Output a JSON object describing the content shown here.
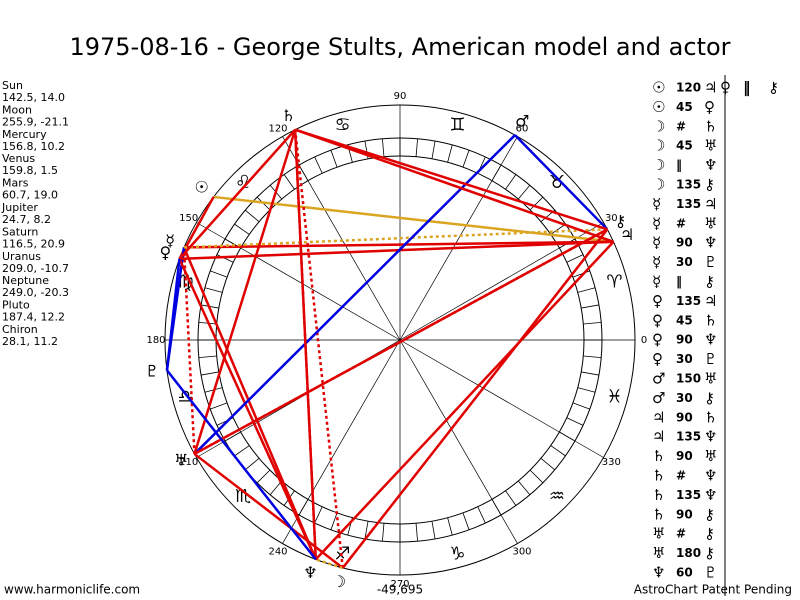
{
  "title": "1975-08-16 - George Stults, American model and actor",
  "planets": [
    {
      "name": "Sun",
      "glyph": "☉",
      "coords": "142.5, 14.0"
    },
    {
      "name": "Moon",
      "glyph": "☽",
      "coords": "255.9, -21.1"
    },
    {
      "name": "Mercury",
      "glyph": "☿",
      "coords": "156.8, 10.2"
    },
    {
      "name": "Venus",
      "glyph": "♀",
      "coords": "159.8, 1.5"
    },
    {
      "name": "Mars",
      "glyph": "♂",
      "coords": "60.7, 19.0"
    },
    {
      "name": "Jupiter",
      "glyph": "♃",
      "coords": "24.7, 8.2"
    },
    {
      "name": "Saturn",
      "glyph": "♄",
      "coords": "116.5, 20.9"
    },
    {
      "name": "Uranus",
      "glyph": "♅",
      "coords": "209.0, -10.7"
    },
    {
      "name": "Neptune",
      "glyph": "♆",
      "coords": "249.0, -20.3"
    },
    {
      "name": "Pluto",
      "glyph": "♇",
      "coords": "187.4, 12.2"
    },
    {
      "name": "Chiron",
      "glyph": "⚷",
      "coords": "28.1, 11.2"
    }
  ],
  "signs": [
    "♈",
    "♉",
    "♊",
    "♋",
    "♌",
    "♍",
    "♎",
    "♏",
    "♐",
    "♑",
    "♒",
    "♓"
  ],
  "degree_labels": [
    0,
    30,
    60,
    90,
    120,
    150,
    180,
    210,
    240,
    270,
    300,
    330
  ],
  "aspects": [
    {
      "p1": "☉",
      "aspect": "120",
      "p2": "♃",
      "color": "#daa520",
      "style": "solid"
    },
    {
      "p1": "☉",
      "aspect": "45",
      "p2": "♀",
      "color": "#e00000",
      "style": "solid"
    },
    {
      "p1": "☽",
      "aspect": "#",
      "p2": "♄",
      "color": "#e00000",
      "style": "dotted"
    },
    {
      "p1": "☽",
      "aspect": "45",
      "p2": "♅",
      "color": "#e00000",
      "style": "solid"
    },
    {
      "p1": "☽",
      "aspect": "‖",
      "p2": "♆",
      "color": "#daa520",
      "style": "dotted"
    },
    {
      "p1": "☽",
      "aspect": "135",
      "p2": "⚷",
      "color": "#e00000",
      "style": "solid"
    },
    {
      "p1": "☿",
      "aspect": "135",
      "p2": "♃",
      "color": "#e00000",
      "style": "solid"
    },
    {
      "p1": "☿",
      "aspect": "#",
      "p2": "♅",
      "color": "#e00000",
      "style": "dotted"
    },
    {
      "p1": "☿",
      "aspect": "90",
      "p2": "♆",
      "color": "#e00000",
      "style": "solid"
    },
    {
      "p1": "☿",
      "aspect": "30",
      "p2": "♇",
      "color": "#0000e0",
      "style": "solid"
    },
    {
      "p1": "☿",
      "aspect": "‖",
      "p2": "⚷",
      "color": "#daa520",
      "style": "dotted"
    },
    {
      "p1": "♀",
      "aspect": "135",
      "p2": "♃",
      "color": "#e00000",
      "style": "solid"
    },
    {
      "p1": "♀",
      "aspect": "45",
      "p2": "♄",
      "color": "#e00000",
      "style": "solid"
    },
    {
      "p1": "♀",
      "aspect": "90",
      "p2": "♆",
      "color": "#e00000",
      "style": "solid"
    },
    {
      "p1": "♀",
      "aspect": "30",
      "p2": "♇",
      "color": "#0000e0",
      "style": "solid"
    },
    {
      "p1": "♂",
      "aspect": "150",
      "p2": "♅",
      "color": "#0000e0",
      "style": "solid"
    },
    {
      "p1": "♂",
      "aspect": "30",
      "p2": "⚷",
      "color": "#0000e0",
      "style": "solid"
    },
    {
      "p1": "♃",
      "aspect": "90",
      "p2": "♄",
      "color": "#e00000",
      "style": "solid"
    },
    {
      "p1": "♃",
      "aspect": "135",
      "p2": "♆",
      "color": "#e00000",
      "style": "solid"
    },
    {
      "p1": "♄",
      "aspect": "90",
      "p2": "♅",
      "color": "#e00000",
      "style": "solid"
    },
    {
      "p1": "♄",
      "aspect": "#",
      "p2": "♆",
      "color": "#e00000",
      "style": "dotted"
    },
    {
      "p1": "♄",
      "aspect": "135",
      "p2": "♆",
      "color": "#e00000",
      "style": "solid"
    },
    {
      "p1": "♄",
      "aspect": "90",
      "p2": "⚷",
      "color": "#e00000",
      "style": "solid"
    },
    {
      "p1": "♅",
      "aspect": "#",
      "p2": "⚷",
      "color": "#e00000",
      "style": "dotted"
    },
    {
      "p1": "♅",
      "aspect": "180",
      "p2": "⚷",
      "color": "#e00000",
      "style": "solid"
    },
    {
      "p1": "♆",
      "aspect": "60",
      "p2": "♇",
      "color": "#0000e0",
      "style": "solid"
    }
  ],
  "extra_aspect": {
    "p1": "♀",
    "aspect": "‖",
    "p2": "⚷"
  },
  "footer": {
    "left": "www.harmoniclife.com",
    "center": "-49,695",
    "right": "AstroChart Patent Pending"
  }
}
